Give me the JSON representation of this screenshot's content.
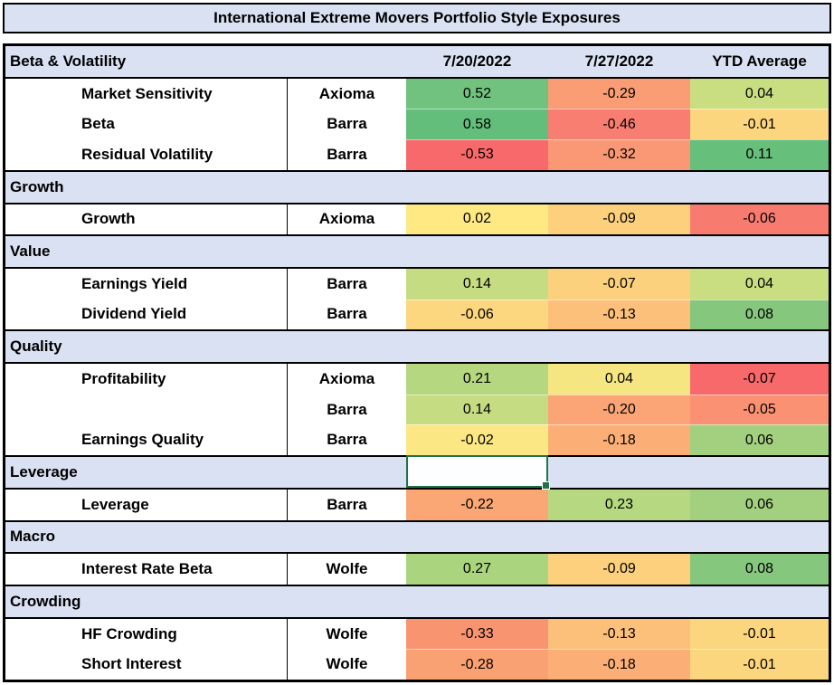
{
  "title": "International Extreme Movers Portfolio Style Exposures",
  "columns": [
    "7/20/2022",
    "7/27/2022",
    "YTD Average"
  ],
  "colors": {
    "section_bg": "#D9E1F2",
    "table_border": "#000000",
    "selection_green": "#217346",
    "heatmap_min_red": "#F8696B",
    "heatmap_mid_yellow": "#FFEB84",
    "heatmap_max_green": "#63BE7B"
  },
  "selection": {
    "section": "Leverage",
    "column": "7/20/2022"
  },
  "sections": [
    {
      "name": "Beta & Volatility",
      "rows": [
        {
          "factor": "Market Sensitivity",
          "provider": "Axioma",
          "values": [
            "0.52",
            "-0.29",
            "0.04"
          ],
          "cell_colors": [
            "#70C27E",
            "#FA9D75",
            "#C9DD81"
          ]
        },
        {
          "factor": "Beta",
          "provider": "Barra",
          "values": [
            "0.58",
            "-0.46",
            "-0.01"
          ],
          "cell_colors": [
            "#63BE7B",
            "#F87E72",
            "#FCD67E"
          ]
        },
        {
          "factor": "Residual Volatility",
          "provider": "Barra",
          "values": [
            "-0.53",
            "-0.32",
            "0.11"
          ],
          "cell_colors": [
            "#F8696B",
            "#FA9876",
            "#66BF7B"
          ]
        }
      ]
    },
    {
      "name": "Growth",
      "rows": [
        {
          "factor": "Growth",
          "provider": "Axioma",
          "values": [
            "0.02",
            "-0.09",
            "-0.06"
          ],
          "cell_colors": [
            "#FEE983",
            "#FCD07D",
            "#F87B70"
          ]
        }
      ]
    },
    {
      "name": "Value",
      "rows": [
        {
          "factor": "Earnings Yield",
          "provider": "Barra",
          "values": [
            "0.14",
            "-0.07",
            "0.04"
          ],
          "cell_colors": [
            "#C6DC82",
            "#FCD17D",
            "#C9DD81"
          ]
        },
        {
          "factor": "Dividend Yield",
          "provider": "Barra",
          "values": [
            "-0.06",
            "-0.13",
            "0.08"
          ],
          "cell_colors": [
            "#FDD77F",
            "#FCC07A",
            "#85C77D"
          ]
        }
      ]
    },
    {
      "name": "Quality",
      "rows": [
        {
          "factor": "Profitability",
          "provider": "Axioma",
          "values": [
            "0.21",
            "0.04",
            "-0.07"
          ],
          "cell_colors": [
            "#B4D780",
            "#F5E682",
            "#F8696B"
          ]
        },
        {
          "factor": "",
          "provider": "Barra",
          "values": [
            "0.14",
            "-0.20",
            "-0.05"
          ],
          "cell_colors": [
            "#C6DC82",
            "#FBA476",
            "#FA9173"
          ]
        },
        {
          "factor": "Earnings Quality",
          "provider": "Barra",
          "values": [
            "-0.02",
            "-0.18",
            "0.06"
          ],
          "cell_colors": [
            "#FBE783",
            "#FBAF77",
            "#A2D07E"
          ]
        }
      ]
    },
    {
      "name": "Leverage",
      "selected_column": 0,
      "rows": [
        {
          "factor": "Leverage",
          "provider": "Barra",
          "values": [
            "-0.22",
            "0.23",
            "0.06"
          ],
          "cell_colors": [
            "#FAA675",
            "#B5D881",
            "#A2D07E"
          ]
        }
      ]
    },
    {
      "name": "Macro",
      "rows": [
        {
          "factor": "Interest Rate Beta",
          "provider": "Wolfe",
          "values": [
            "0.27",
            "-0.09",
            "0.08"
          ],
          "cell_colors": [
            "#ABD47F",
            "#FCD07D",
            "#85C77D"
          ]
        }
      ]
    },
    {
      "name": "Crowding",
      "rows": [
        {
          "factor": "HF Crowding",
          "provider": "Wolfe",
          "values": [
            "-0.33",
            "-0.13",
            "-0.01"
          ],
          "cell_colors": [
            "#F99470",
            "#FCC07A",
            "#FCD67E"
          ]
        },
        {
          "factor": "Short Interest",
          "provider": "Wolfe",
          "values": [
            "-0.28",
            "-0.18",
            "-0.01"
          ],
          "cell_colors": [
            "#FAA173",
            "#FBAF77",
            "#FCD67E"
          ]
        }
      ]
    }
  ]
}
